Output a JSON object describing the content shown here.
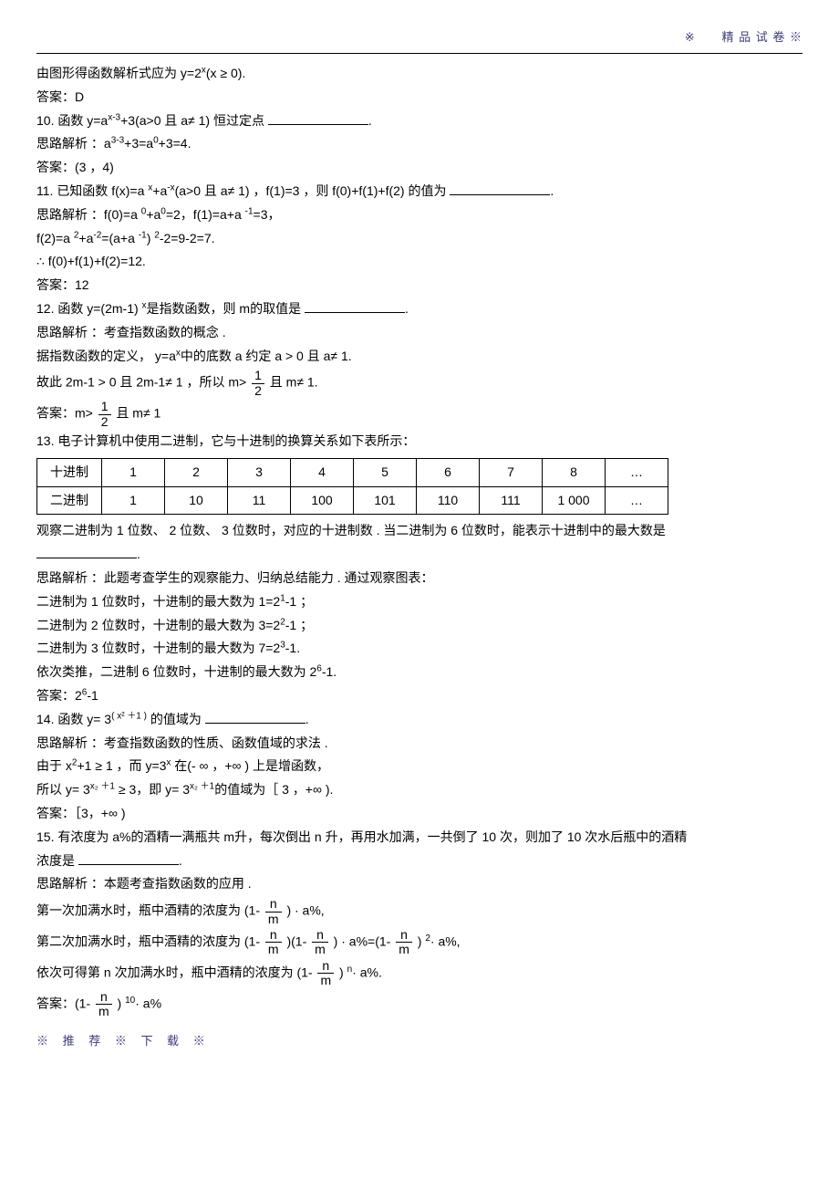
{
  "header": {
    "marker": "※",
    "text": "精 品 试 卷 ※"
  },
  "p1": "由图形得函数解析式应为   y=2",
  "p1_sup": "x",
  "p1_tail": "(x ≥ 0).",
  "a1": "答案：D",
  "q10a": "10. 函数 y=a",
  "q10_sup1": "x-3",
  "q10b": "+3(a>0 且 a≠ 1) 恒过定点 ",
  "s10a": "思路解析 ：a",
  "s10_sup": "3-3",
  "s10b": "+3=a",
  "s10_sup2": "0",
  "s10c": "+3=4.",
  "a10": "答案：(3 ，4)",
  "q11a": "11. 已知函数  f(x)=a ",
  "q11_supx": "x",
  "q11b": "+a",
  "q11_supnx": "-x",
  "q11c": "(a>0 且 a≠ 1) ，f(1)=3  ，则 f(0)+f(1)+f(2)    的值为 ",
  "s11a": "思路解析 ：f(0)=a ",
  "s11_sup0a": "0",
  "s11b": "+a",
  "s11_sup0b": "0",
  "s11c": "=2，f(1)=a+a ",
  "s11_supn1": "-1",
  "s11d": "=3，",
  "s11e": "f(2)=a ",
  "s11_sup2": "2",
  "s11f": "+a",
  "s11_supn2": "-2",
  "s11g": "=(a+a ",
  "s11_supn1b": "-1",
  "s11h": ") ",
  "s11_sup2b": "2",
  "s11i": "-2=9-2=7.",
  "s11j": "∴ f(0)+f(1)+f(2)=12.",
  "a11": "答案：12",
  "q12a": "12. 函数  y=(2m-1) ",
  "q12_supx": "x",
  "q12b": "是指数函数，则  m的取值是 ",
  "s12a": "思路解析 ：考查指数函数的概念  .",
  "s12b": "据指数函数的定义，  y=a",
  "s12_supx": "x",
  "s12c": "中的底数  a 约定 a > 0 且 a≠ 1.",
  "s12d": "故此  2m-1 > 0 且 2m-1≠ 1 ，所以  m> ",
  "s12e": " 且 m≠ 1.",
  "a12a": "答案：m> ",
  "a12b": " 且 m≠ 1",
  "frac_half_num": "1",
  "frac_half_den": "2",
  "q13": "13. 电子计算机中使用二进制，它与十进制的换算关系如下表所示：",
  "table": {
    "r1": [
      "十进制",
      "1",
      "2",
      "3",
      "4",
      "5",
      "6",
      "7",
      "8",
      "…"
    ],
    "r2": [
      "二进制",
      "1",
      "10",
      "11",
      "100",
      "101",
      "110",
      "111",
      "1 000",
      "…"
    ]
  },
  "q13b": "观察二进制为   1 位数、 2 位数、 3 位数时，对应的十进制数  . 当二进制为   6 位数时，能表示十进制中的最大数是",
  "s13a": "思路解析 ：此题考查学生的观察能力、归纳总结能力    . 通过观察图表：",
  "s13b": "二进制为  1 位数时，十进制的最大数为    1=2",
  "s13b_sup": "1",
  "s13b_tail": "-1 ；",
  "s13c": "二进制为  2 位数时，十进制的最大数为    3=2",
  "s13c_sup": "2",
  "s13c_tail": "-1 ；",
  "s13d": "二进制为  3 位数时，十进制的最大数为    7=2",
  "s13d_sup": "3",
  "s13d_tail": "-1.",
  "s13e": "依次类推，二进制   6 位数时，十进制的最大数为    2",
  "s13e_sup": "6",
  "s13e_tail": "-1.",
  "a13a": "答案：2",
  "a13_sup": "6",
  "a13b": "-1",
  "q14a": "14. 函数  y= 3",
  "q14_sup": "( x² ＋1 )",
  "q14b": " 的值域为 ",
  "s14a": "思路解析 ：考查指数函数的性质、函数值域的求法    .",
  "s14b": "由于  x",
  "s14b_sup": "2",
  "s14c": "+1 ≥ 1 ，而  y=3",
  "s14c_sup": "x",
  "s14d": " 在(- ∞ ，+∞ ) 上是增函数，",
  "s14e": "所以  y= 3",
  "s14e_sup": "x₂ ＋1",
  "s14f": " ≥ 3，即  y= 3",
  "s14f_sup": "x₂ ＋1",
  "s14g": "的值域为［ 3 ，+∞ ).",
  "a14": "答案：［3，+∞ )",
  "q15a": "15. 有浓度为  a%的酒精一满瓶共   m升，每次倒出   n 升，再用水加满，一共倒了   10 次，则加了  10 次水后瓶中的酒精",
  "q15b": "浓度是 ",
  "s15a": "思路解析 ：本题考查指数函数的应用   .",
  "s15b": "第一次加满水时，瓶中酒精的浓度为    (1- ",
  "s15c": " ) · a%,",
  "s15d": "第二次加满水时，瓶中酒精的浓度为    (1- ",
  "s15e": " )(1- ",
  "s15f": " ) · a%=(1- ",
  "s15g": " ) ",
  "s15g_sup": "2",
  "s15h": "· a%,",
  "s15i": "依次可得第  n 次加满水时，瓶中酒精的浓度为    (1- ",
  "s15j": " ) ",
  "s15j_sup": "n",
  "s15k": "· a%.",
  "a15a": "答案：(1- ",
  "a15b": " ) ",
  "a15_sup": "10",
  "a15c": "· a%",
  "frac_nm_num": "n",
  "frac_nm_den": "m",
  "footer": "※ 推 荐 ※ 下 载 ※"
}
